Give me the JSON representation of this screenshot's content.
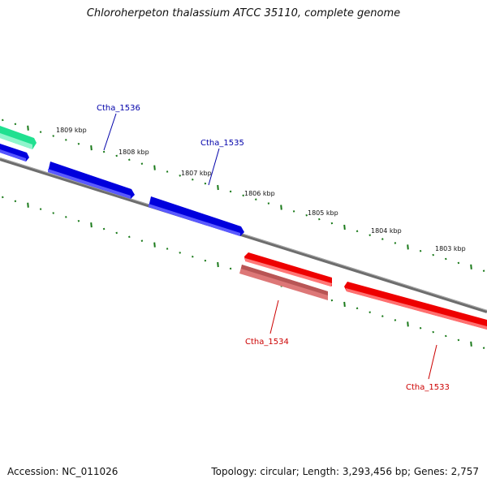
{
  "title": "Chloroherpeton thalassium ATCC 35110, complete genome",
  "footer": {
    "accession": "Accession: NC_011026",
    "summary": "Topology: circular; Length: 3,293,456 bp; Genes: 2,757"
  },
  "colors": {
    "backbone": "#7a7a7a",
    "tick": "#1a7a1a",
    "forward_gene": "#0000ee",
    "reverse_gene": "#ee0000",
    "reverse_gene_light": "#f08080",
    "other_gene": "#2ee8a0",
    "forward_label": "#0000aa",
    "reverse_label": "#cc0000"
  },
  "ruler": {
    "ticks": [
      "1809 kbp",
      "1808 kbp",
      "1807 kbp",
      "1806 kbp",
      "1805 kbp",
      "1804 kbp",
      "1803 kbp"
    ]
  },
  "gene_labels": {
    "ctha_1536": "Ctha_1536",
    "ctha_1535": "Ctha_1535",
    "ctha_1534": "Ctha_1534",
    "ctha_1533": "Ctha_1533"
  }
}
